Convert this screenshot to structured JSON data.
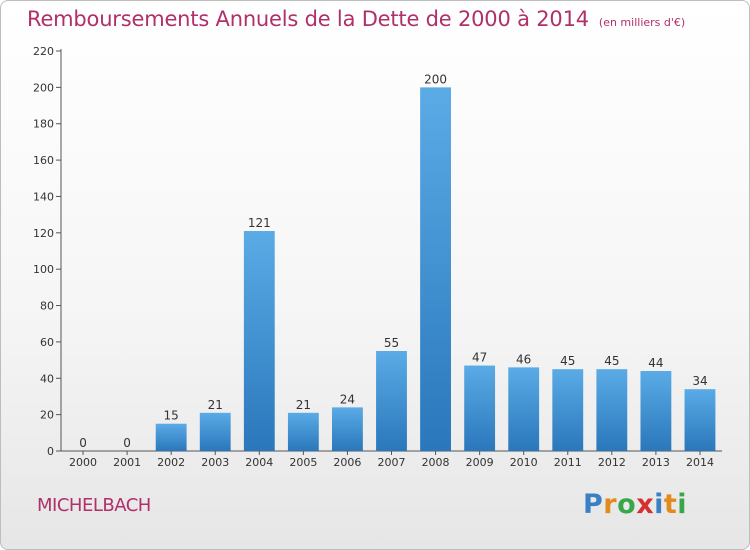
{
  "title": "Remboursements Annuels de la Dette de 2000 à 2014",
  "unit": "(en milliers d'€)",
  "commune": "MICHELBACH",
  "logo": {
    "letters": [
      "P",
      "r",
      "o",
      "x",
      "i",
      "t",
      "i"
    ],
    "colors": [
      "#3b7fc4",
      "#e38a1d",
      "#3aa64a",
      "#d62f2f",
      "#3b7fc4",
      "#e38a1d",
      "#3aa64a"
    ]
  },
  "colors": {
    "bar_top": "#5aabe6",
    "bar_bottom": "#2a77bb",
    "title": "#b0306a",
    "axis": "#555555"
  },
  "chart_data": {
    "type": "bar",
    "categories": [
      "2000",
      "2001",
      "2002",
      "2003",
      "2004",
      "2005",
      "2006",
      "2007",
      "2008",
      "2009",
      "2010",
      "2011",
      "2012",
      "2013",
      "2014"
    ],
    "values": [
      0,
      0,
      15,
      21,
      121,
      21,
      24,
      55,
      200,
      47,
      46,
      45,
      45,
      44,
      34
    ],
    "value_labels": [
      "0",
      "0",
      "15",
      "21",
      "121",
      "21",
      "24",
      "55",
      "200",
      "47",
      "46",
      "45",
      "45",
      "44",
      "34"
    ],
    "yticks": [
      0,
      20,
      40,
      60,
      80,
      100,
      120,
      140,
      160,
      180,
      200,
      220
    ],
    "ylim": [
      0,
      220
    ],
    "title": "Remboursements Annuels de la Dette de 2000 à 2014",
    "xlabel": "",
    "ylabel": "",
    "grid": false,
    "legend": "none"
  }
}
